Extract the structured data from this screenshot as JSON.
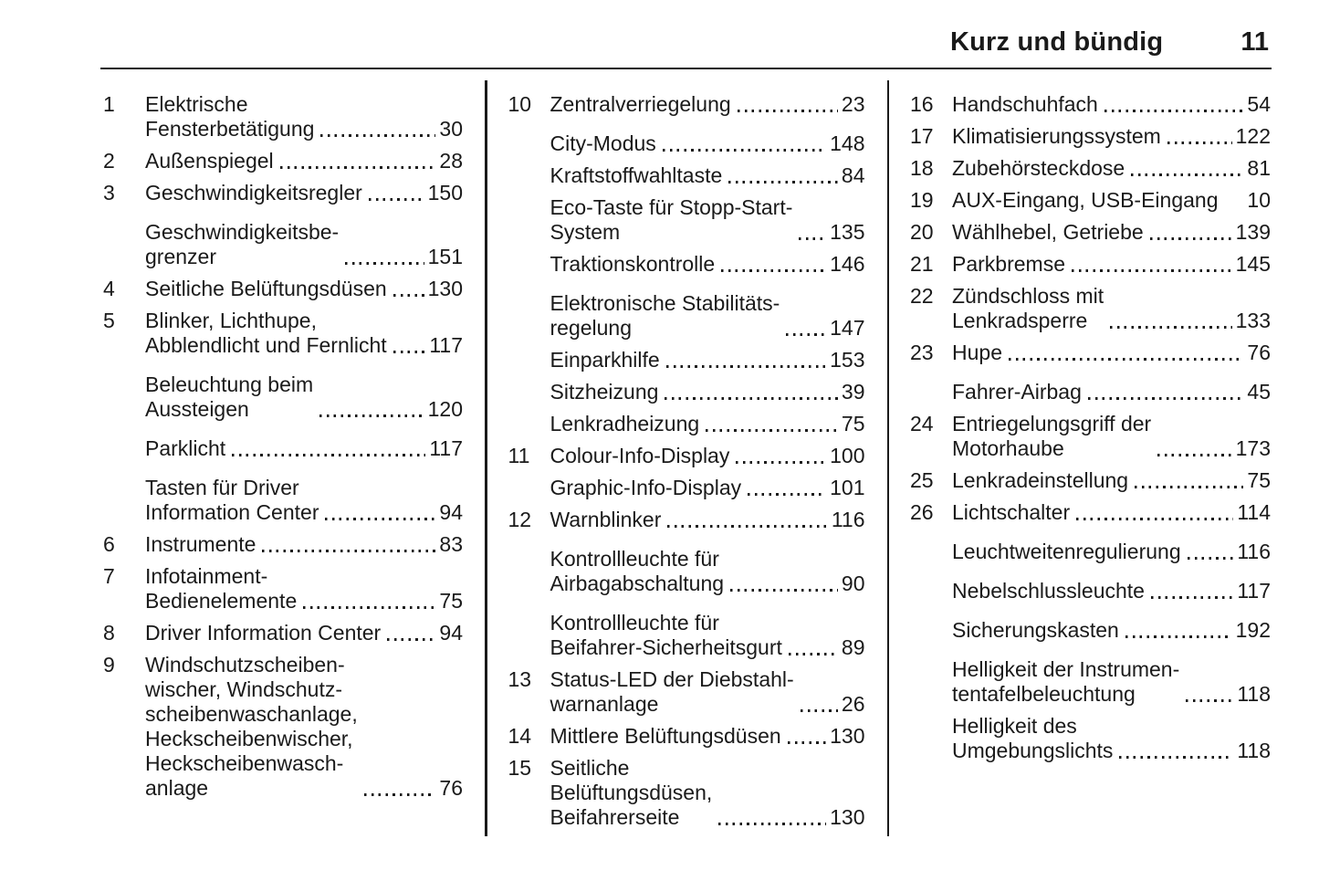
{
  "colors": {
    "text": "#1a1a1a",
    "background": "#ffffff",
    "rule": "#1a1a1a"
  },
  "header": {
    "title": "Kurz und bündig",
    "page_number": "11"
  },
  "columns": [
    {
      "entries": [
        {
          "num": "1",
          "label": "Elektrische\nFensterbetätigung",
          "page": "30"
        },
        {
          "num": "2",
          "label": "Außenspiegel",
          "page": "28"
        },
        {
          "num": "3",
          "label": "Geschwindigkeitsregler",
          "page": "150"
        },
        {
          "num": "",
          "label": "Geschwindigkeitsbe-\ngrenzer",
          "page": "151",
          "spaced": true
        },
        {
          "num": "4",
          "label": "Seitliche Belüftungsdüsen",
          "page": "130"
        },
        {
          "num": "5",
          "label": "Blinker, Lichthupe,\nAbblendlicht und Fernlicht",
          "page": "117"
        },
        {
          "num": "",
          "label": "Beleuchtung beim\nAussteigen",
          "page": "120",
          "spaced": true
        },
        {
          "num": "",
          "label": "Parklicht",
          "page": "117",
          "spaced": true
        },
        {
          "num": "",
          "label": "Tasten für Driver\nInformation Center",
          "page": "94",
          "spaced": true
        },
        {
          "num": "6",
          "label": "Instrumente",
          "page": "83"
        },
        {
          "num": "7",
          "label": "Infotainment-\nBedienelemente",
          "page": "75"
        },
        {
          "num": "8",
          "label": "Driver Information Center",
          "page": "94"
        },
        {
          "num": "9",
          "label": "Windschutzscheiben-\nwischer, Windschutz-\nscheibenwaschanlage,\nHeckscheibenwischer,\nHeckscheibenwasch-\nanlage",
          "page": "76"
        }
      ]
    },
    {
      "entries": [
        {
          "num": "10",
          "label": "Zentralverriegelung",
          "page": "23"
        },
        {
          "num": "",
          "label": "City-Modus",
          "page": "148",
          "spaced": true
        },
        {
          "num": "",
          "label": "Kraftstoffwahltaste",
          "page": "84"
        },
        {
          "num": "",
          "label": "Eco-Taste für Stopp-Start-\nSystem",
          "page": "135"
        },
        {
          "num": "",
          "label": "Traktionskontrolle",
          "page": "146"
        },
        {
          "num": "",
          "label": "Elektronische Stabilitäts-\nregelung",
          "page": "147",
          "spaced": true
        },
        {
          "num": "",
          "label": "Einparkhilfe",
          "page": "153"
        },
        {
          "num": "",
          "label": "Sitzheizung",
          "page": "39"
        },
        {
          "num": "",
          "label": "Lenkradheizung",
          "page": "75"
        },
        {
          "num": "11",
          "label": "Colour-Info-Display",
          "page": "100"
        },
        {
          "num": "",
          "label": "Graphic-Info-Display",
          "page": "101"
        },
        {
          "num": "12",
          "label": "Warnblinker",
          "page": "116"
        },
        {
          "num": "",
          "label": "Kontrollleuchte für\nAirbagabschaltung",
          "page": "90",
          "spaced": true
        },
        {
          "num": "",
          "label": "Kontrollleuchte für\nBeifahrer-Sicherheitsgurt",
          "page": "89",
          "spaced": true
        },
        {
          "num": "13",
          "label": "Status-LED der Diebstahl-\nwarnanlage",
          "page": "26"
        },
        {
          "num": "14",
          "label": "Mittlere Belüftungsdüsen",
          "page": "130"
        },
        {
          "num": "15",
          "label": "Seitliche\nBelüftungsdüsen,\nBeifahrerseite",
          "page": "130"
        }
      ]
    },
    {
      "entries": [
        {
          "num": "16",
          "label": "Handschuhfach",
          "page": "54"
        },
        {
          "num": "17",
          "label": "Klimatisierungssystem",
          "page": "122"
        },
        {
          "num": "18",
          "label": "Zubehörsteckdose",
          "page": "81"
        },
        {
          "num": "19",
          "label": "AUX-Eingang, USB-Eingang",
          "page": "10",
          "leader": false
        },
        {
          "num": "20",
          "label": "Wählhebel, Getriebe",
          "page": "139"
        },
        {
          "num": "21",
          "label": "Parkbremse",
          "page": "145"
        },
        {
          "num": "22",
          "label": "Zündschloss mit\nLenkradsperre",
          "page": "133"
        },
        {
          "num": "23",
          "label": "Hupe",
          "page": "76"
        },
        {
          "num": "",
          "label": "Fahrer-Airbag",
          "page": "45",
          "spaced": true
        },
        {
          "num": "24",
          "label": "Entriegelungsgriff der\nMotorhaube",
          "page": "173"
        },
        {
          "num": "25",
          "label": "Lenkradeinstellung",
          "page": "75"
        },
        {
          "num": "26",
          "label": "Lichtschalter",
          "page": "114"
        },
        {
          "num": "",
          "label": "Leuchtweitenregulierung",
          "page": "116",
          "spaced": true
        },
        {
          "num": "",
          "label": "Nebelschlussleuchte",
          "page": "117",
          "spaced": true
        },
        {
          "num": "",
          "label": "Sicherungskasten",
          "page": "192",
          "spaced": true
        },
        {
          "num": "",
          "label": "Helligkeit der Instrumen-\ntentafelbeleuchtung",
          "page": "118",
          "spaced": true
        },
        {
          "num": "",
          "label": "Helligkeit des\nUmgebungslichts",
          "page": "118"
        }
      ]
    }
  ]
}
